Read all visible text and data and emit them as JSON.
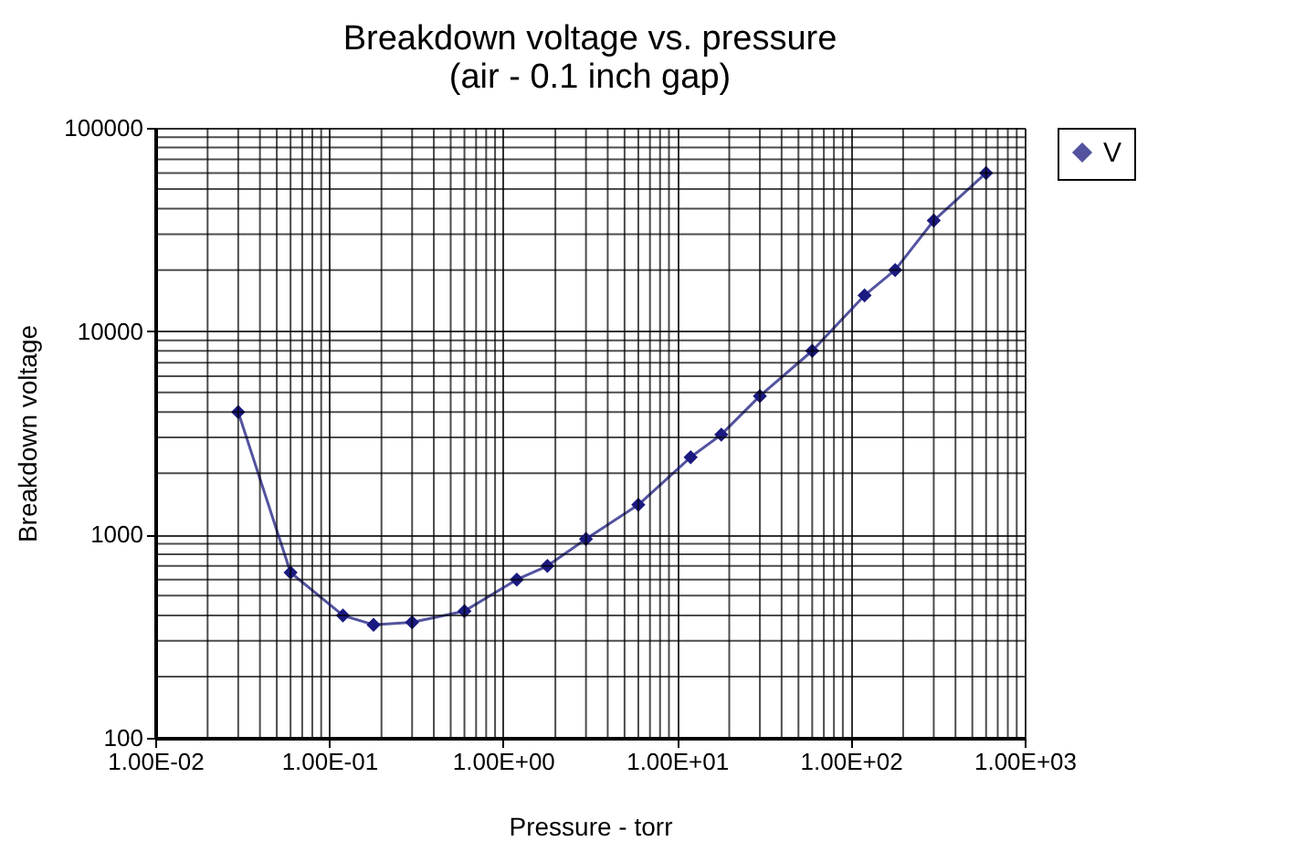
{
  "chart_data": {
    "type": "line",
    "title": "Breakdown voltage vs. pressure\n(air - 0.1 inch gap)",
    "xlabel": "Pressure - torr",
    "ylabel": "Breakdown voltage",
    "x": [
      0.03,
      0.06,
      0.12,
      0.18,
      0.3,
      0.6,
      1.2,
      1.8,
      3,
      6,
      12,
      18,
      30,
      60,
      120,
      180,
      300,
      600
    ],
    "series": [
      {
        "name": "V",
        "color": "#1a1a80",
        "values": [
          4000,
          650,
          400,
          360,
          370,
          420,
          600,
          700,
          950,
          1400,
          2400,
          3100,
          4800,
          8000,
          15000,
          20000,
          35000,
          60000
        ]
      }
    ],
    "xlim": [
      0.01,
      1000
    ],
    "ylim": [
      100,
      100000
    ],
    "xticks": [
      {
        "value": 0.01,
        "label": "1.00E-02"
      },
      {
        "value": 0.1,
        "label": "1.00E-01"
      },
      {
        "value": 1,
        "label": "1.00E+00"
      },
      {
        "value": 10,
        "label": "1.00E+01"
      },
      {
        "value": 100,
        "label": "1.00E+02"
      },
      {
        "value": 1000,
        "label": "1.00E+03"
      }
    ],
    "yticks": [
      100,
      1000,
      10000,
      100000
    ],
    "log": "xy",
    "grid": true,
    "legend": "right",
    "marker": "diamond",
    "line_style": "solid"
  }
}
